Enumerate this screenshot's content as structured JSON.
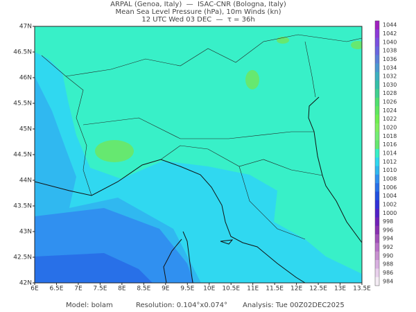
{
  "header": {
    "line1": "ARPAL (Genoa, Italy)  —  ISAC-CNR (Bologna, Italy)",
    "line2": "Mean Sea Level Pressure (hPa), 10m Winds (kn)",
    "line3": "12 UTC Wed 03 DEC  —  τ = 36h"
  },
  "map": {
    "lat_labels": [
      "47N",
      "46.5N",
      "46N",
      "45.5N",
      "45N",
      "44.5N",
      "44N",
      "43.5N",
      "43N",
      "42.5N",
      "42N"
    ],
    "lon_labels": [
      "6E",
      "6.5E",
      "7E",
      "7.5E",
      "8E",
      "8.5E",
      "9E",
      "9.5E",
      "10E",
      "10.5E",
      "11E",
      "11.5E",
      "12E",
      "12.5E",
      "13E",
      "13.5E"
    ]
  },
  "colorbar": {
    "labels": [
      1044,
      1042,
      1040,
      1038,
      1036,
      1034,
      1032,
      1030,
      1028,
      1026,
      1024,
      1022,
      1020,
      1018,
      1016,
      1014,
      1012,
      1010,
      1008,
      1006,
      1004,
      1002,
      1000,
      998,
      996,
      994,
      992,
      990,
      988,
      986,
      984
    ],
    "colors": [
      "#a020c0",
      "#8c3ad8",
      "#7a50e0",
      "#6a66e0",
      "#5a80d8",
      "#4a98d0",
      "#3cb0c0",
      "#34c0a8",
      "#40d090",
      "#50e070",
      "#60e860",
      "#70f050",
      "#80f060",
      "#74ee74",
      "#66e870",
      "#38f0c8",
      "#30d8f0",
      "#30b8f0",
      "#3090f0",
      "#2870e8",
      "#2050e0",
      "#3030d8",
      "#5020c8",
      "#7020b8",
      "#8830b0",
      "#a050b8",
      "#b870c8",
      "#c890d0",
      "#d8b0e0",
      "#e8d0ec",
      "#f4ecf4"
    ]
  },
  "footer": {
    "model": "Model: bolam",
    "resolution": "Resolution: 0.104°x0.074°",
    "analysis": "Analysis: Tue 00Z02DEC2025"
  }
}
